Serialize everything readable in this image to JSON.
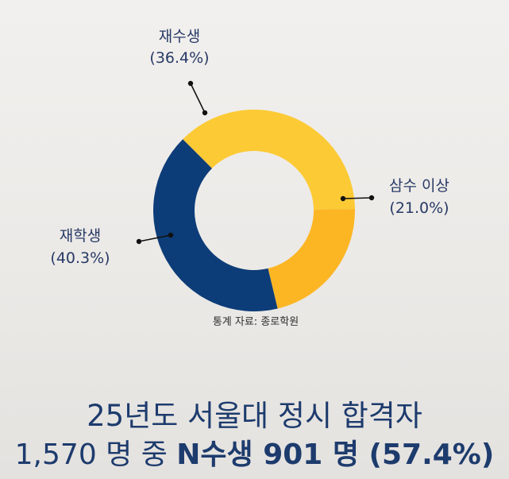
{
  "chart_data": {
    "type": "pie",
    "style": "donut",
    "categories": [
      "재수생",
      "삼수 이상",
      "재학생"
    ],
    "values": [
      36.4,
      21.0,
      40.3
    ],
    "labels": [
      "재수생",
      "삼수 이상",
      "재학생"
    ],
    "value_labels": [
      "(36.4%)",
      "(21.0%)",
      "(40.3%)"
    ],
    "colors": [
      "#fcca35",
      "#fcb624",
      "#0d3d78"
    ],
    "source": "통계 자료: 종로학원"
  },
  "headline": {
    "line1": "25년도 서울대 정시 합격자",
    "line2_plain": "1,570 명 중 ",
    "line2_bold": "N수생 901 명 (57.4%)"
  }
}
